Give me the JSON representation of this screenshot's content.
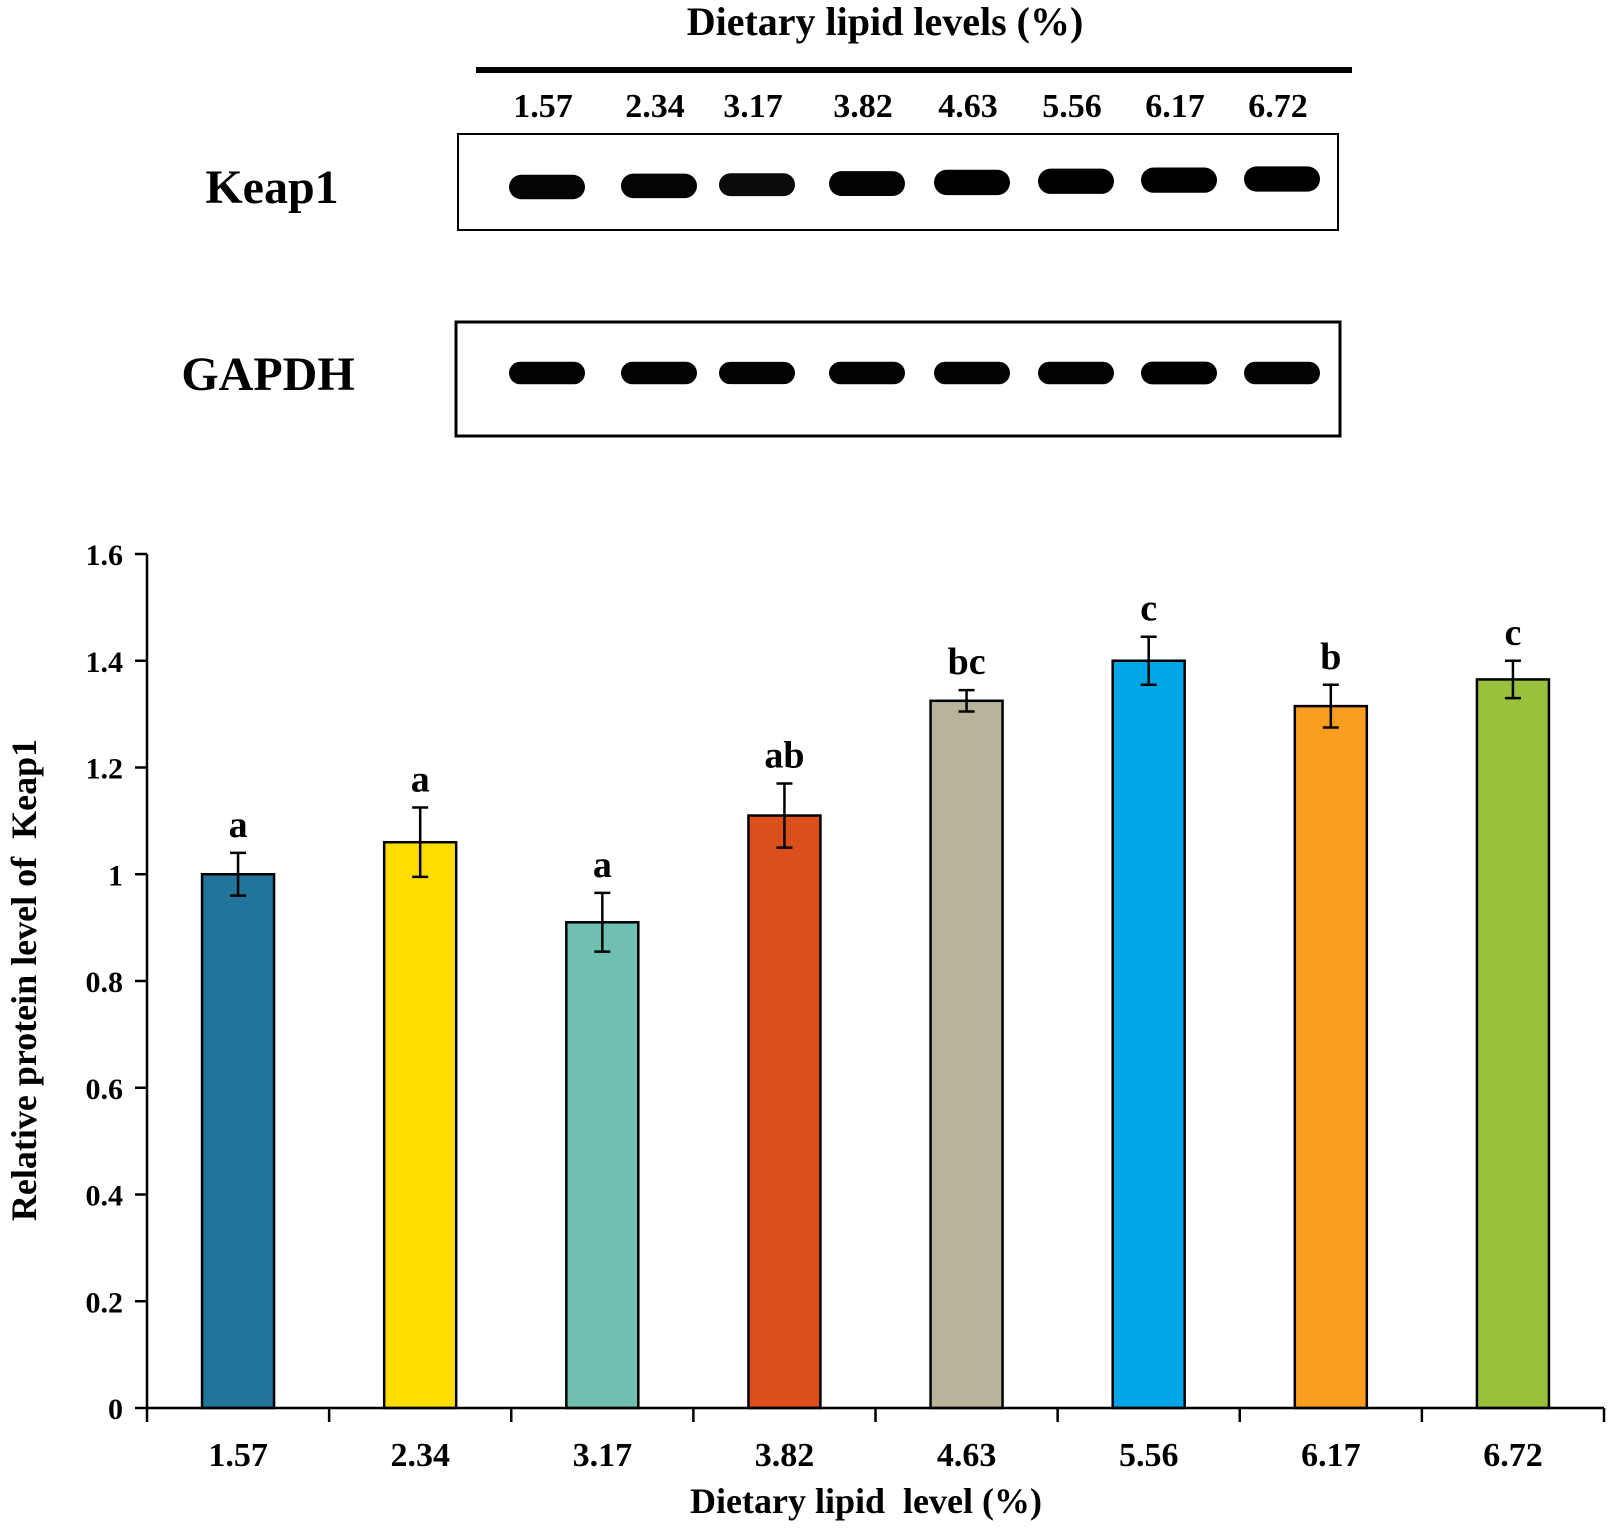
{
  "blot": {
    "header": "Dietary lipid levels (%)",
    "lanes": [
      "1.57",
      "2.34",
      "3.17",
      "3.82",
      "4.63",
      "5.56",
      "6.17",
      "6.72"
    ],
    "rows": [
      {
        "label": "Keap1",
        "intensity": [
          0.9,
          0.9,
          0.72,
          0.95,
          1.0,
          1.0,
          1.0,
          1.0
        ]
      },
      {
        "label": "GAPDH",
        "intensity": [
          0.95,
          0.93,
          0.92,
          0.93,
          0.95,
          0.95,
          0.97,
          0.95
        ]
      }
    ]
  },
  "chart_data": {
    "type": "bar",
    "xlabel": "Dietary lipid  level (%)",
    "ylabel": "Relative protein level of  Keap1",
    "categories": [
      "1.57",
      "2.34",
      "3.17",
      "3.82",
      "4.63",
      "5.56",
      "6.17",
      "6.72"
    ],
    "values": [
      1.0,
      1.06,
      0.91,
      1.11,
      1.325,
      1.4,
      1.315,
      1.365
    ],
    "errors": [
      0.04,
      0.065,
      0.055,
      0.06,
      0.02,
      0.045,
      0.04,
      0.035
    ],
    "significance": [
      "a",
      "a",
      "a",
      "ab",
      "bc",
      "c",
      "b",
      "c"
    ],
    "colors": [
      "#22749a",
      "#ffdd00",
      "#70c0b2",
      "#dc4e1a",
      "#b8b49c",
      "#02a6e6",
      "#fb9e20",
      "#99c13b"
    ],
    "ylim": [
      0,
      1.6
    ],
    "yticks": [
      "0",
      "0.2",
      "0.4",
      "0.6",
      "0.8",
      "1",
      "1.2",
      "1.4",
      "1.6"
    ],
    "ytick_values": [
      0,
      0.2,
      0.4,
      0.6,
      0.8,
      1.0,
      1.2,
      1.4,
      1.6
    ],
    "grid": false,
    "legend": "none"
  }
}
